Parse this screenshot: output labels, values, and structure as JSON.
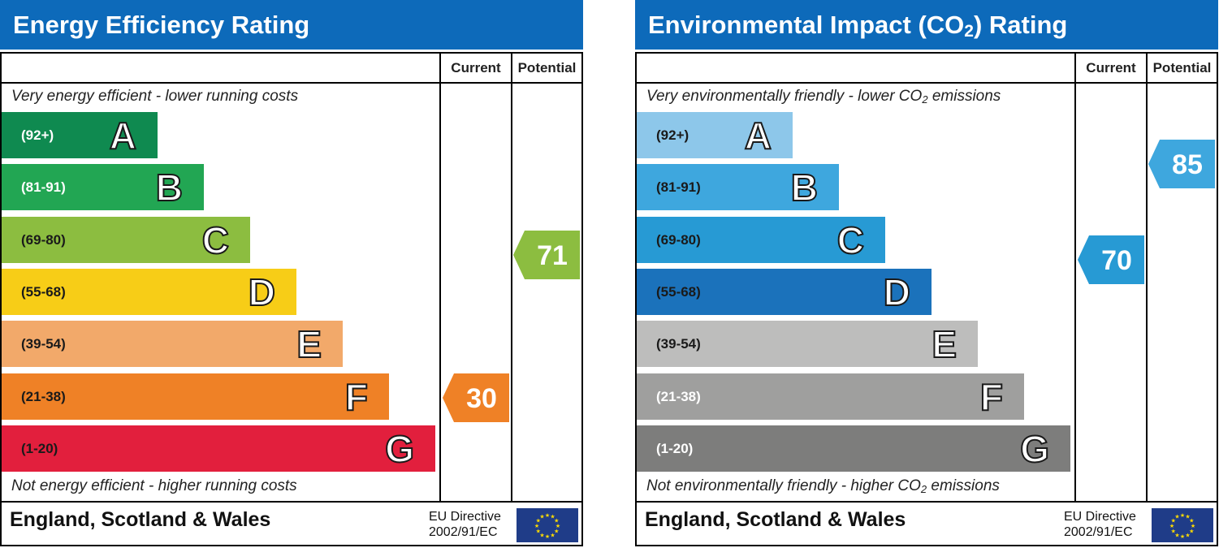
{
  "chart_data": [
    {
      "type": "bar",
      "title": "Energy Efficiency Rating",
      "columns": [
        "Current",
        "Potential"
      ],
      "top_note": "Very energy efficient - lower running costs",
      "bottom_note": "Not energy efficient - higher running costs",
      "categories": [
        "A",
        "B",
        "C",
        "D",
        "E",
        "F",
        "G"
      ],
      "ranges": [
        "(92+)",
        "(81-91)",
        "(69-80)",
        "(55-68)",
        "(39-54)",
        "(21-38)",
        "(1-20)"
      ],
      "colors": [
        "#0f8a50",
        "#22a653",
        "#8cbd40",
        "#f7cd17",
        "#f2a96a",
        "#ef8126",
        "#e21f3d"
      ],
      "range_text_colors": [
        "#ffffff",
        "#ffffff",
        "#1a1a1a",
        "#1a1a1a",
        "#1a1a1a",
        "#1a1a1a",
        "#1a1a1a"
      ],
      "current": {
        "value": "30",
        "band": "F",
        "color": "#ef8126"
      },
      "potential": {
        "value": "71",
        "band": "C",
        "color": "#8cbd40"
      },
      "footer": {
        "region": "England, Scotland & Wales",
        "directive_line1": "EU Directive",
        "directive_line2": "2002/91/EC"
      }
    },
    {
      "type": "bar",
      "title_main": "Environmental Impact (CO",
      "title_sub": "2",
      "title_end": ") Rating",
      "columns": [
        "Current",
        "Potential"
      ],
      "top_note_main": "Very environmentally friendly - lower CO",
      "top_note_sub": "2",
      "top_note_end": " emissions",
      "bottom_note_main": "Not environmentally friendly - higher CO",
      "bottom_note_sub": "2",
      "bottom_note_end": " emissions",
      "categories": [
        "A",
        "B",
        "C",
        "D",
        "E",
        "F",
        "G"
      ],
      "ranges": [
        "(92+)",
        "(81-91)",
        "(69-80)",
        "(55-68)",
        "(39-54)",
        "(21-38)",
        "(1-20)"
      ],
      "colors": [
        "#8dc7ea",
        "#3ea7de",
        "#279ad4",
        "#1b72bb",
        "#bdbdbc",
        "#9f9f9e",
        "#7d7d7c"
      ],
      "range_text_colors": [
        "#1a1a1a",
        "#1a1a1a",
        "#1a1a1a",
        "#1a1a1a",
        "#1a1a1a",
        "#ffffff",
        "#ffffff"
      ],
      "current": {
        "value": "70",
        "band": "C",
        "color": "#279ad4"
      },
      "potential": {
        "value": "85",
        "band": "B",
        "color": "#3ea7de"
      },
      "footer": {
        "region": "England, Scotland & Wales",
        "directive_line1": "EU Directive",
        "directive_line2": "2002/91/EC"
      }
    }
  ]
}
